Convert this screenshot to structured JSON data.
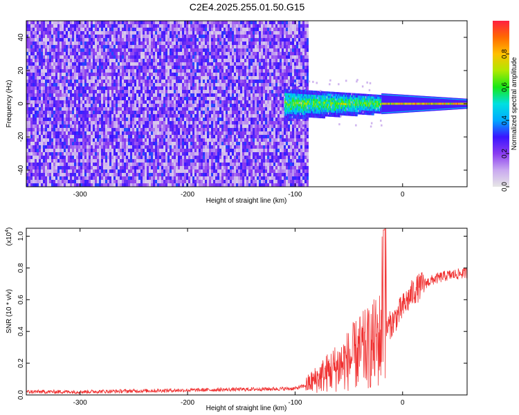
{
  "title": "C2E4.2025.255.01.50.G15",
  "spectrogram": {
    "chart_data": {
      "type": "heatmap",
      "xlabel": "Height of straight line (km)",
      "ylabel": "Frequency (Hz)",
      "xlim": [
        -350,
        60
      ],
      "ylim": [
        -50,
        50
      ],
      "x_ticks": [
        -300,
        -200,
        -100,
        0
      ],
      "x_tick_labels": [
        "-300",
        "-200",
        "-100",
        "0"
      ],
      "y_ticks": [
        -40,
        -20,
        0,
        20,
        40
      ],
      "y_tick_labels": [
        "-40",
        "-20",
        "0",
        "20",
        "40"
      ],
      "noise_region_km": [
        -350,
        -88
      ],
      "signal_band": {
        "start_km": -110,
        "end_km": 60,
        "center_hz": 0,
        "halfwidth_hz_at_start": 9,
        "halfwidth_hz_at_end": 2
      }
    }
  },
  "colorbar": {
    "label": "Normalized spectral amplitude",
    "range": [
      0,
      1
    ],
    "ticks": [
      0.0,
      0.2,
      0.4,
      0.6,
      0.8
    ],
    "tick_labels": [
      "0.0",
      "0.2",
      "0.4",
      "0.6",
      "0.8"
    ],
    "colors": [
      "#e6e6e6",
      "#c9a9f0",
      "#8a3cf0",
      "#3a14ff",
      "#00aaff",
      "#00e0e0",
      "#18e818",
      "#b0e800",
      "#ffc000",
      "#ff6a00",
      "#ff2040"
    ]
  },
  "snr": {
    "chart_data": {
      "type": "line",
      "xlabel": "Height of straight line (km)",
      "ylabel": "SNR (10 * v/v)",
      "scale_label": "(x10",
      "scale_exp": "4",
      "scale_close": ")",
      "xlim": [
        -350,
        60
      ],
      "ylim": [
        0,
        1.05
      ],
      "x_ticks": [
        -300,
        -200,
        -100,
        0
      ],
      "x_tick_labels": [
        "-300",
        "-200",
        "-100",
        "0"
      ],
      "y_ticks": [
        0.0,
        0.2,
        0.4,
        0.6,
        0.8,
        1.0
      ],
      "y_tick_labels": [
        "0.0",
        "0.2",
        "0.4",
        "0.6",
        "0.8",
        "1.0"
      ],
      "line_color": "#f03030",
      "series": [
        {
          "name": "SNR",
          "x": [
            -350,
            -300,
            -250,
            -200,
            -150,
            -100,
            -90,
            -80,
            -70,
            -60,
            -50,
            -40,
            -30,
            -20,
            -17,
            -15,
            -10,
            0,
            10,
            20,
            30,
            40,
            50,
            60
          ],
          "y": [
            0.02,
            0.02,
            0.025,
            0.03,
            0.035,
            0.04,
            0.06,
            0.1,
            0.14,
            0.18,
            0.22,
            0.27,
            0.3,
            0.36,
            1.04,
            0.42,
            0.45,
            0.55,
            0.65,
            0.7,
            0.73,
            0.75,
            0.76,
            0.77
          ]
        }
      ]
    }
  }
}
